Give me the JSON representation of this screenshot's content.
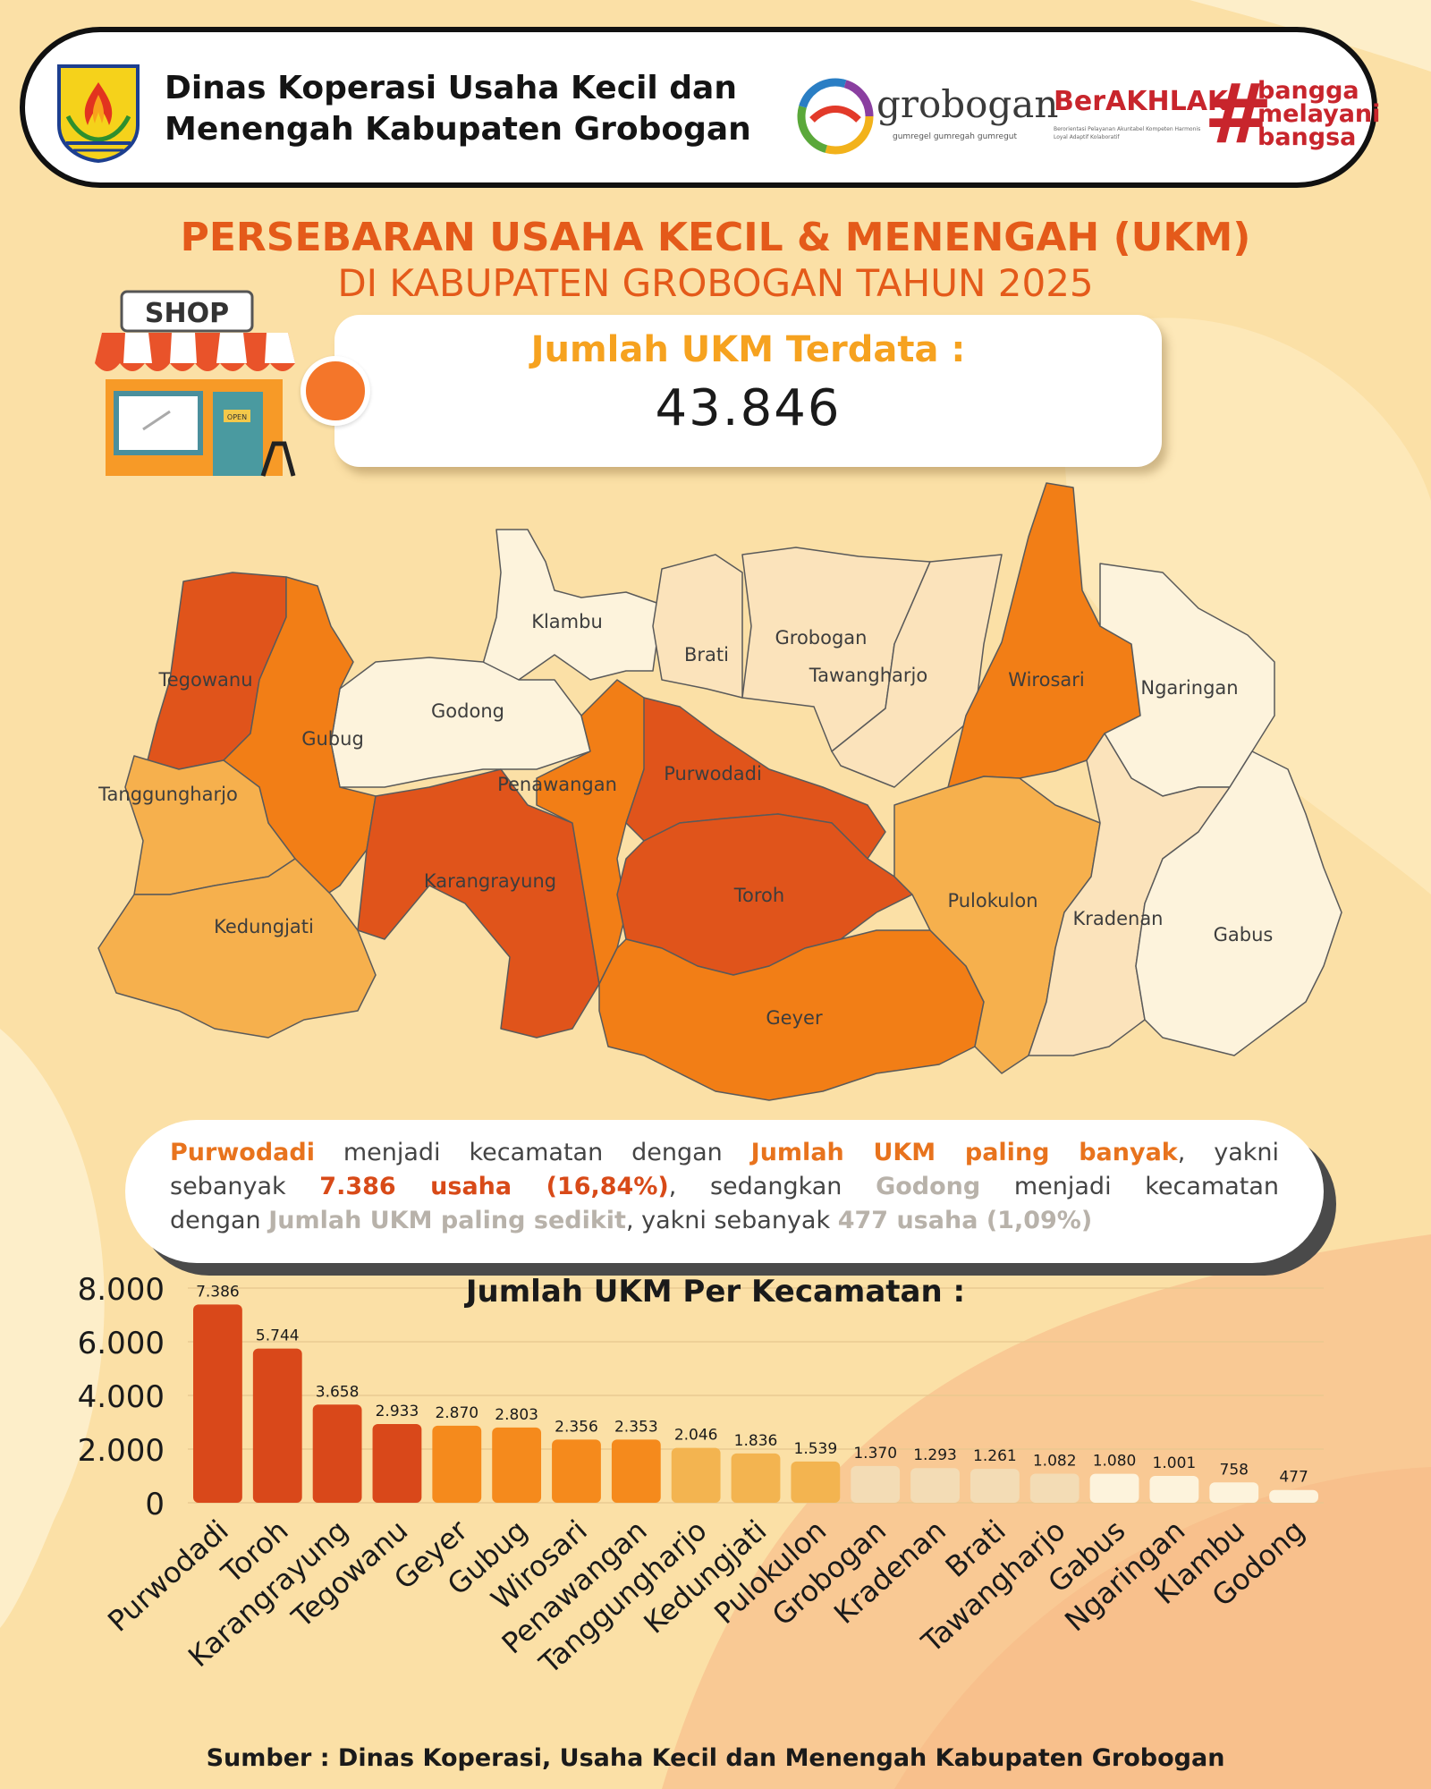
{
  "header": {
    "org_line1": "Dinas Koperasi Usaha Kecil dan",
    "org_line2": "Menengah Kabupaten Grobogan",
    "logo_grobogan": "grobogan",
    "logo_grobogan_tagline": "gumregel gumregah gumregut",
    "logo_berakhlak": "BerAKHLAK",
    "logo_berakhlak_tagline": "Berorientasi Pelayanan Akuntabel Kompeten Harmonis Loyal Adaptif Kolaboratif",
    "logo_bangga": [
      "bangga",
      "melayani",
      "bangsa"
    ],
    "emblem_icon": "kabupaten-grobogan-emblem"
  },
  "title": {
    "line1": "PERSEBARAN USAHA KECIL & MENENGAH (UKM)",
    "line2": "DI KABUPATEN GROBOGAN TAHUN 2025"
  },
  "summary": {
    "label": "Jumlah UKM Terdata :",
    "value": "43.846",
    "shop_sign": "SHOP",
    "open_sign": "OPEN"
  },
  "map": {
    "districts": [
      "Tegowanu",
      "Klambu",
      "Brati",
      "Grobogan",
      "Tawangharjo",
      "Wirosari",
      "Ngaringan",
      "Godong",
      "Gubug",
      "Tanggungharjo",
      "Penawangan",
      "Purwodadi",
      "Karangrayung",
      "Kedungjati",
      "Toroh",
      "Pulokulon",
      "Kradenan",
      "Gabus",
      "Geyer"
    ]
  },
  "note": {
    "line1_a": "Purwodadi",
    "line1_b": " menjadi kecamatan dengan ",
    "line1_c": "Jumlah UKM paling banyak",
    "line1_d": ", yakni",
    "line2_a": "sebanyak ",
    "line2_b": "7.386 usaha (16,84%)",
    "line2_c": ", sedangkan ",
    "line2_d": "Godong",
    "line2_e": " menjadi kecamatan",
    "line3_a": "dengan ",
    "line3_b": "Jumlah UKM paling sedikit",
    "line3_c": ", yakni sebanyak ",
    "line3_d": "477 usaha (1,09%)"
  },
  "chart_data": {
    "type": "bar",
    "title": "Jumlah UKM Per Kecamatan :",
    "categories": [
      "Purwodadi",
      "Toroh",
      "Karangrayung",
      "Tegowanu",
      "Geyer",
      "Gubug",
      "Wirosari",
      "Penawangan",
      "Tanggungharjo",
      "Kedungjati",
      "Pulokulon",
      "Grobogan",
      "Kradenan",
      "Brati",
      "Tawangharjo",
      "Gabus",
      "Ngaringan",
      "Klambu",
      "Godong"
    ],
    "values": [
      7386,
      5744,
      3658,
      2933,
      2870,
      2803,
      2356,
      2353,
      2046,
      1836,
      1539,
      1370,
      1293,
      1261,
      1082,
      1080,
      1001,
      758,
      477
    ],
    "value_labels": [
      "7.386",
      "5.744",
      "3.658",
      "2.933",
      "2.870",
      "2.803",
      "2.356",
      "2.353",
      "2.046",
      "1.836",
      "1.539",
      "1.370",
      "1.293",
      "1.261",
      "1.082",
      "1.080",
      "1.001",
      "758",
      "477"
    ],
    "ylim": [
      0,
      8000
    ],
    "yticks": [
      0,
      2000,
      4000,
      6000,
      8000
    ],
    "ytick_labels": [
      "0",
      "2.000",
      "4.000",
      "6.000",
      "8.000"
    ],
    "grid": true,
    "legend": "none",
    "colors": [
      "#d9481a",
      "#d9481a",
      "#d9481a",
      "#d9481a",
      "#f58a1c",
      "#f58a1c",
      "#f58a1c",
      "#f58a1c",
      "#f3b450",
      "#f3b450",
      "#f3b450",
      "#f3dcb5",
      "#f3dcb5",
      "#f3dcb5",
      "#f3dcb5",
      "#fdf3dc",
      "#fdf3dc",
      "#fdf3dc",
      "#fdf3dc"
    ]
  },
  "source": "Sumber : Dinas Koperasi, Usaha Kecil dan Menengah Kabupaten Grobogan"
}
